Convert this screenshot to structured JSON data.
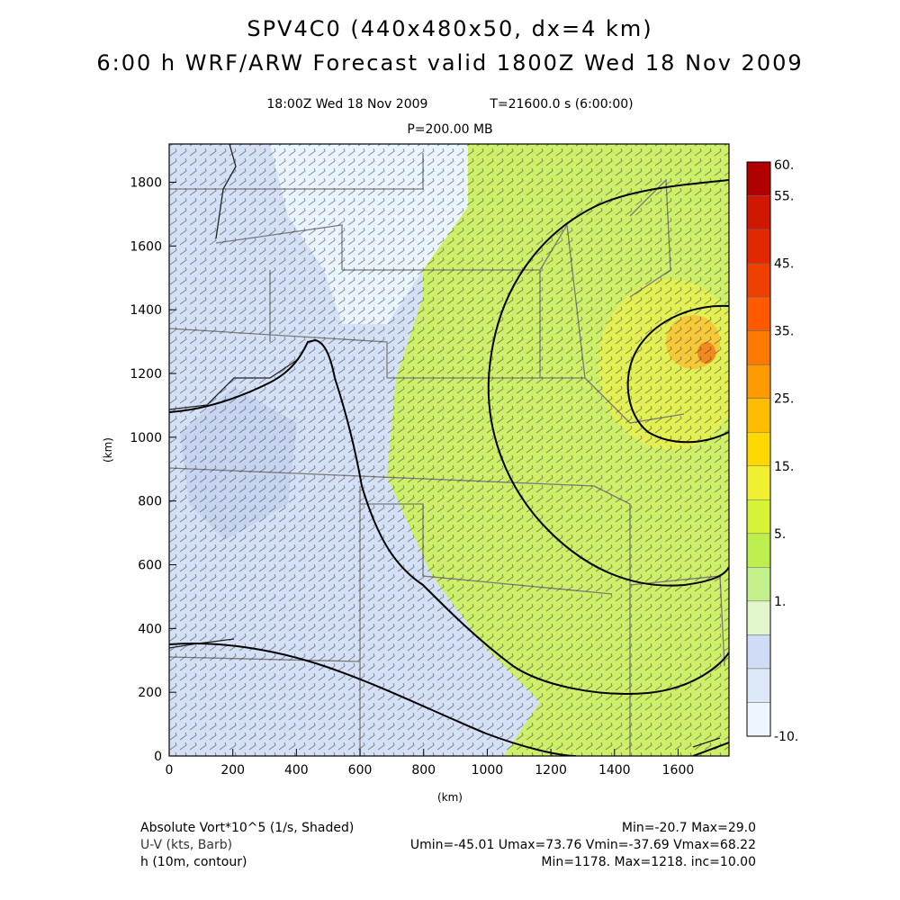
{
  "title": {
    "line1": "SPV4C0 (440x480x50, dx=4 km)",
    "line2": "6:00 h WRF/ARW Forecast valid 1800Z Wed 18 Nov 2009"
  },
  "subtitle": {
    "time_left": "18:00Z Wed 18 Nov 2009",
    "time_right": "T=21600.0 s (6:00:00)",
    "level": "P=200.00 MB"
  },
  "axes": {
    "x_label": "(km)",
    "y_label": "(km)",
    "x_ticks": [
      "0",
      "200",
      "400",
      "600",
      "800",
      "1000",
      "1200",
      "1400",
      "1600"
    ],
    "y_ticks": [
      "0",
      "200",
      "400",
      "600",
      "800",
      "1000",
      "1200",
      "1400",
      "1600",
      "1800"
    ],
    "x_range": [
      0,
      1760
    ],
    "y_range": [
      0,
      1920
    ]
  },
  "colorbar": {
    "labels": [
      "60.",
      "55.",
      "45.",
      "35.",
      "25.",
      "15.",
      "5.",
      "1.",
      "-10."
    ],
    "colors": [
      "#b00000",
      "#d01800",
      "#e02800",
      "#f04000",
      "#ff5a00",
      "#ff7800",
      "#ff9a00",
      "#ffbd00",
      "#ffd800",
      "#f0ef30",
      "#d8f238",
      "#bcef4e",
      "#c4f08c",
      "#e2f6cc",
      "#cfdcf6",
      "#dde9f8",
      "#eef6fd"
    ]
  },
  "footer": {
    "left": [
      "Absolute Vort*10^5 (1/s, Shaded)",
      "U-V (kts, Barb)",
      "h (10m, contour)"
    ],
    "right": [
      "Min=-20.7 Max=29.0",
      "Umin=-45.01 Umax=73.76 Vmin=-37.69 Vmax=68.22",
      "Min=1178. Max=1218. inc=10.00"
    ]
  },
  "colors": {
    "land_green": "#cdef6a",
    "trough_blue": "#d4e0f6",
    "contour": "#000000",
    "state_lines": "#7a7a7a"
  }
}
